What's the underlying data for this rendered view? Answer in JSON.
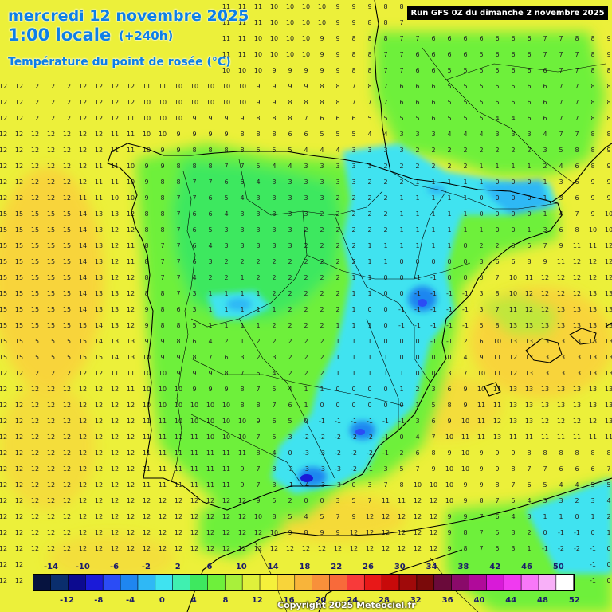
{
  "header": {
    "date": "mercredi 12 novembre 2025",
    "time": "1:00 locale",
    "lead": "(+240h)",
    "parameter": "Température du point de rosée (°C)",
    "run": "Run GFS 0Z du dimanche 2 novembre 2025"
  },
  "legend": {
    "upper_labels": [
      "-14",
      "-10",
      "-6",
      "-2",
      "2",
      "6",
      "10",
      "14",
      "18",
      "22",
      "26",
      "30",
      "34",
      "38",
      "42",
      "46",
      "50"
    ],
    "lower_labels": [
      "-12",
      "-8",
      "-4",
      "0",
      "4",
      "8",
      "12",
      "16",
      "20",
      "24",
      "28",
      "32",
      "36",
      "40",
      "44",
      "48",
      "52"
    ],
    "colors": [
      "#06133f",
      "#0a2e6d",
      "#0c0a8f",
      "#1a1ad8",
      "#2b4cf5",
      "#1f86f0",
      "#2fb8f5",
      "#3fe3f0",
      "#40f0b0",
      "#3ee85f",
      "#6ef03b",
      "#a8f03b",
      "#dff03b",
      "#f5f03b",
      "#f8d43a",
      "#f8b43a",
      "#f8903a",
      "#f86a3a",
      "#f83a3a",
      "#e81818",
      "#c80a0a",
      "#a00a0a",
      "#7a0a0a",
      "#6a0a3a",
      "#8a0a6a",
      "#b00a9a",
      "#d81ad8",
      "#f03af0",
      "#f878f8",
      "#f8b0f8",
      "#ffffff"
    ]
  },
  "copyright": "Copyright 2025 Meteociel.fr"
}
